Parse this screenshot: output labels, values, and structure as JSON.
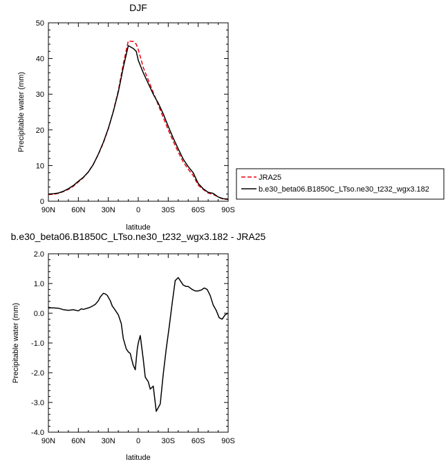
{
  "chart_data": [
    {
      "type": "line",
      "title": "DJF",
      "xlabel": "latitude",
      "ylabel": "Precipitable water (mm)",
      "xlim": [
        90,
        -90
      ],
      "ylim": [
        0,
        50
      ],
      "x_tick_values": [
        90,
        60,
        30,
        0,
        -30,
        -60,
        -90
      ],
      "x_tick_labels": [
        "90N",
        "60N",
        "30N",
        "0",
        "30S",
        "60S",
        "90S"
      ],
      "y_tick_values": [
        0,
        10,
        20,
        30,
        40,
        50
      ],
      "y_tick_labels": [
        "0",
        "10",
        "20",
        "30",
        "40",
        "50"
      ],
      "legend": "right-bottom, outside the plot",
      "x": [
        90,
        85,
        80,
        75,
        70,
        65,
        60,
        55,
        50,
        45,
        40,
        35,
        30,
        25,
        20,
        15,
        10,
        5,
        2,
        0,
        -5,
        -10,
        -15,
        -20,
        -25,
        -30,
        -35,
        -40,
        -45,
        -50,
        -55,
        -60,
        -65,
        -70,
        -75,
        -80,
        -85,
        -90
      ],
      "series": [
        {
          "name": "JRA25",
          "color": "#e8000b",
          "dash": "dashed",
          "values": [
            1.9,
            1.9,
            2.2,
            2.7,
            3.3,
            4.2,
            5.4,
            6.6,
            8.2,
            10.4,
            13.1,
            16.3,
            20.3,
            25.2,
            31.0,
            38.5,
            44.9,
            44.8,
            44.0,
            42.5,
            37.5,
            34.0,
            30.5,
            27.0,
            23.5,
            20.0,
            16.8,
            13.8,
            11.0,
            9.0,
            7.2,
            4.5,
            3.3,
            2.3,
            1.9,
            1.2,
            0.6,
            0.5
          ]
        },
        {
          "name": "b.e30_beta06.B1850C_LTso.ne30_t232_wgx3.182",
          "color": "#000000",
          "dash": "solid",
          "values": [
            2.0,
            2.1,
            2.3,
            2.8,
            3.5,
            4.4,
            5.6,
            6.7,
            8.2,
            10.3,
            13.2,
            16.5,
            20.4,
            25.1,
            30.6,
            37.5,
            43.6,
            42.8,
            42.0,
            39.5,
            36.0,
            33.0,
            30.0,
            27.5,
            24.5,
            21.0,
            17.7,
            14.7,
            11.8,
            9.7,
            8.0,
            5.0,
            3.5,
            2.5,
            2.2,
            1.2,
            0.7,
            0.6
          ]
        }
      ]
    },
    {
      "type": "line",
      "title": "b.e30_beta06.B1850C_LTso.ne30_t232_wgx3.182 - JRA25",
      "xlabel": "latitude",
      "ylabel": "Precipitable water (mm)",
      "xlim": [
        90,
        -90
      ],
      "ylim": [
        -4.0,
        2.0
      ],
      "x_tick_values": [
        90,
        60,
        30,
        0,
        -30,
        -60,
        -90
      ],
      "x_tick_labels": [
        "90N",
        "60N",
        "30N",
        "0",
        "30S",
        "60S",
        "90S"
      ],
      "y_tick_values": [
        2.0,
        1.0,
        0.0,
        -1.0,
        -2.0,
        -3.0,
        -4.0
      ],
      "y_tick_labels": [
        "2.0",
        "1.0",
        "0.0",
        "-1.0",
        "-2.0",
        "-3.0",
        "-4.0"
      ],
      "x": [
        90,
        85,
        80,
        75,
        70,
        65,
        60,
        57,
        55,
        50,
        47,
        43,
        40,
        38,
        35,
        33,
        31,
        28,
        26,
        24,
        20,
        17,
        15,
        12,
        10,
        8,
        7,
        5,
        3,
        1,
        0,
        -2,
        -5,
        -7,
        -10,
        -12,
        -15,
        -18,
        -22,
        -25,
        -28,
        -31,
        -34,
        -37,
        -40,
        -45,
        -48,
        -50,
        -54,
        -57,
        -60,
        -63,
        -66,
        -69,
        -72,
        -75,
        -78,
        -81,
        -84,
        -87,
        -90
      ],
      "series": [
        {
          "name": "",
          "color": "#000000",
          "dash": "solid",
          "values": [
            0.18,
            0.18,
            0.17,
            0.12,
            0.1,
            0.12,
            0.08,
            0.15,
            0.13,
            0.18,
            0.22,
            0.3,
            0.42,
            0.55,
            0.67,
            0.65,
            0.6,
            0.42,
            0.24,
            0.15,
            -0.05,
            -0.35,
            -0.85,
            -1.2,
            -1.3,
            -1.35,
            -1.5,
            -1.75,
            -1.9,
            -1.2,
            -1.0,
            -0.75,
            -1.55,
            -2.15,
            -2.3,
            -2.55,
            -2.45,
            -3.3,
            -3.05,
            -2.05,
            -1.2,
            -0.45,
            0.35,
            1.1,
            1.2,
            0.95,
            0.9,
            0.9,
            0.8,
            0.75,
            0.75,
            0.78,
            0.85,
            0.8,
            0.6,
            0.28,
            0.1,
            -0.15,
            -0.2,
            -0.05,
            0.0
          ]
        }
      ]
    }
  ]
}
